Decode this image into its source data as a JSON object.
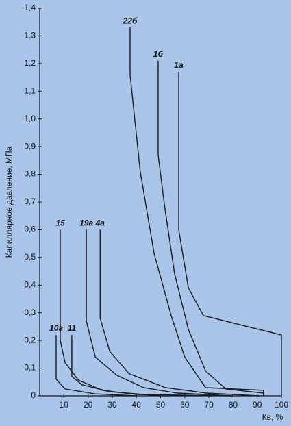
{
  "chart_data": {
    "type": "line",
    "ylabel": "Капиллярное давление, МПа",
    "xlabel": "Кв, %",
    "xlim": [
      0,
      100
    ],
    "xticks": [
      10,
      20,
      30,
      40,
      50,
      60,
      70,
      80,
      90,
      100
    ],
    "ylim": [
      0,
      1.4
    ],
    "yticks": [
      0,
      {
        "value": 0.1,
        "label": "0,1"
      },
      {
        "value": 0.2,
        "label": "0,2"
      },
      {
        "value": 0.3,
        "label": "0,3"
      },
      {
        "value": 0.4,
        "label": "0,4"
      },
      {
        "value": 0.5,
        "label": "0,5"
      },
      {
        "value": 0.6,
        "label": "0,6"
      },
      {
        "value": 0.7,
        "label": "0,7"
      },
      {
        "value": 0.8,
        "label": "0,8"
      },
      {
        "value": 0.9,
        "label": "0,9"
      },
      {
        "value": 1.0,
        "label": "1,0"
      },
      {
        "value": 1.1,
        "label": "1,1"
      },
      {
        "value": 1.2,
        "label": "1,2"
      },
      {
        "value": 1.3,
        "label": "1,3"
      },
      {
        "value": 1.4,
        "label": "1,4"
      }
    ],
    "grid": false,
    "series": [
      {
        "name": "22б",
        "color": "#1a1a1a",
        "x": [
          37.4,
          37.4,
          41.6,
          47.3,
          54.4,
          60,
          68.6,
          92.6,
          92.6
        ],
        "values": [
          1.33,
          1.16,
          0.81,
          0.515,
          0.29,
          0.14,
          0.03,
          0.02,
          0
        ]
      },
      {
        "name": "1б",
        "color": "#1a1a1a",
        "x": [
          49,
          49,
          51.6,
          55.8,
          61.5,
          68.6,
          77,
          92.6,
          92.6
        ],
        "values": [
          1.21,
          0.87,
          0.69,
          0.44,
          0.24,
          0.09,
          0.025,
          0.01,
          0
        ]
      },
      {
        "name": "1а",
        "color": "#1a1a1a",
        "x": [
          57.5,
          57.5,
          61.5,
          67.7,
          100,
          100
        ],
        "values": [
          1.17,
          0.6,
          0.39,
          0.29,
          0.22,
          0
        ]
      },
      {
        "name": "15",
        "color": "#1a1a1a",
        "x": [
          8.5,
          8.5,
          10.5,
          16,
          26,
          40,
          80
        ],
        "values": [
          0.6,
          0.2,
          0.12,
          0.057,
          0.02,
          0.005,
          0
        ]
      },
      {
        "name": "19а",
        "color": "#1a1a1a",
        "x": [
          19.3,
          19.3,
          23,
          32,
          43,
          57,
          80
        ],
        "values": [
          0.6,
          0.27,
          0.14,
          0.074,
          0.03,
          0.01,
          0
        ]
      },
      {
        "name": "4а",
        "color": "#1a1a1a",
        "x": [
          25,
          25,
          29,
          37,
          52,
          69,
          91
        ],
        "values": [
          0.6,
          0.28,
          0.16,
          0.08,
          0.03,
          0.01,
          0
        ]
      },
      {
        "name": "10г",
        "color": "#1a1a1a",
        "x": [
          6.8,
          6.8,
          10.5,
          23,
          40
        ],
        "values": [
          0.22,
          0.06,
          0.025,
          0.007,
          0
        ]
      },
      {
        "name": "11",
        "color": "#1a1a1a",
        "x": [
          13.3,
          13.3,
          17.5,
          29,
          50
        ],
        "values": [
          0.22,
          0.07,
          0.04,
          0.015,
          0
        ]
      }
    ]
  }
}
